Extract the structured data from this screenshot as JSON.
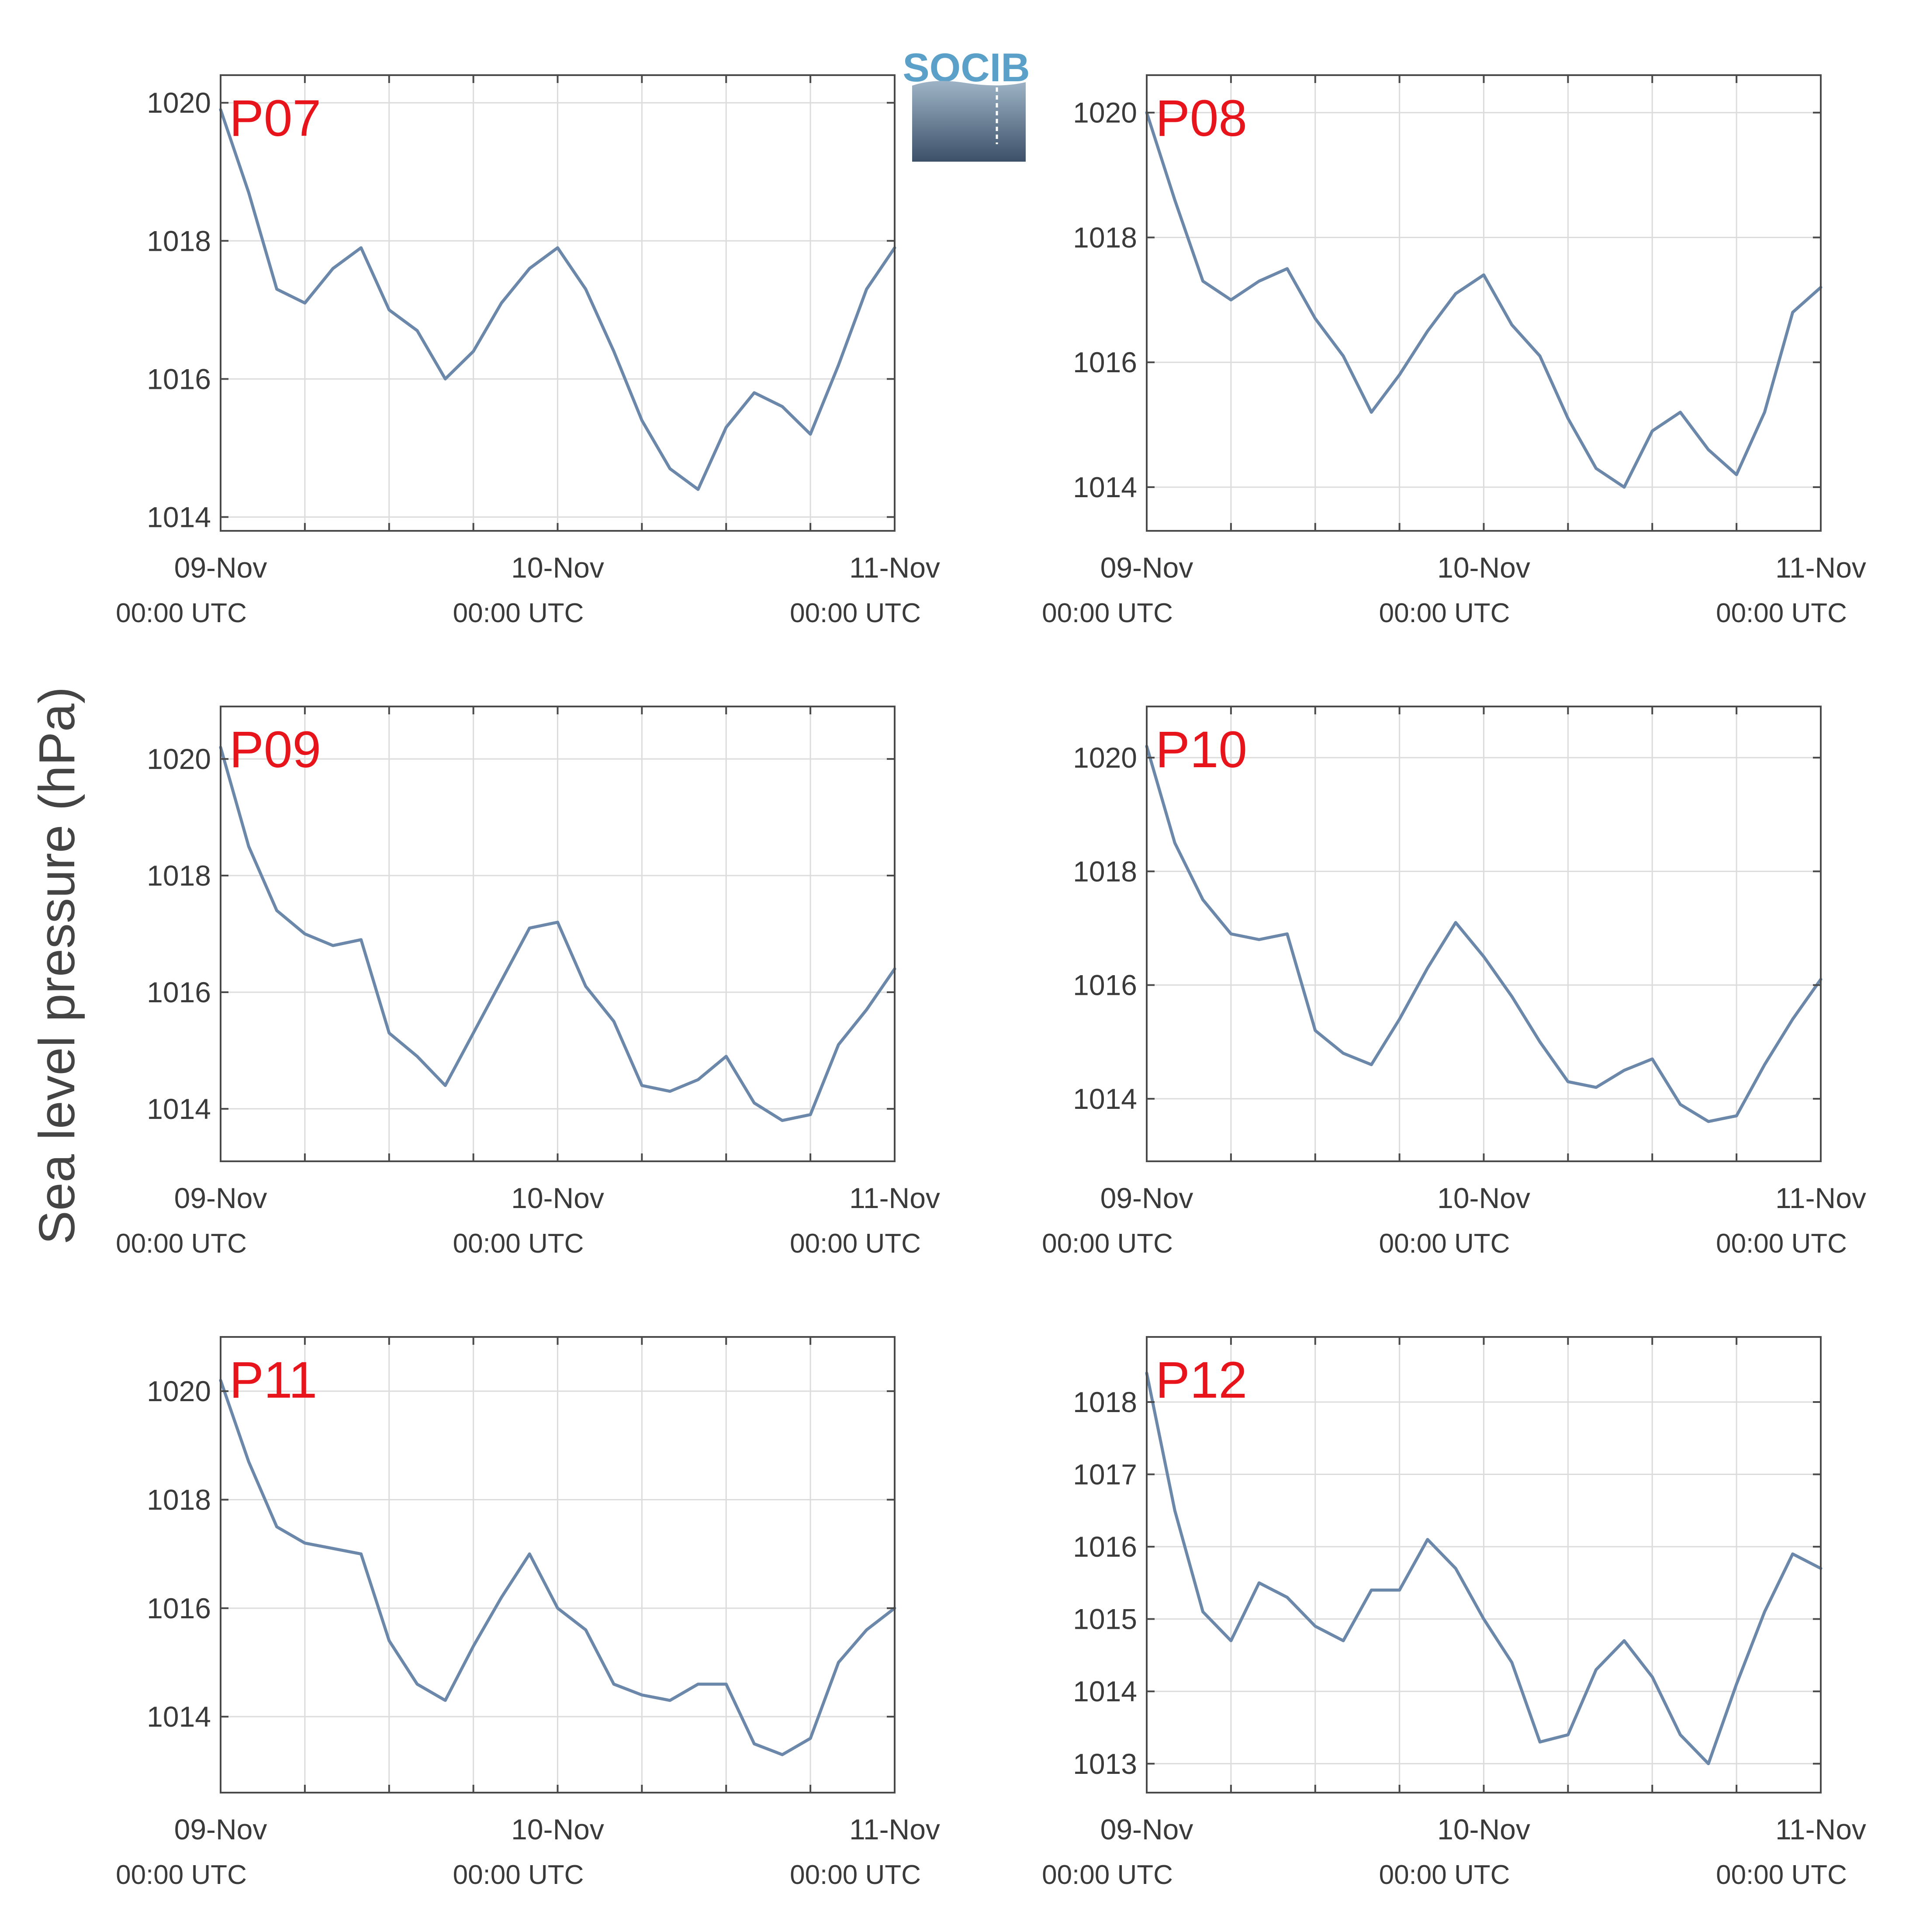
{
  "ylabel": "Sea level pressure (hPa)",
  "logo": {
    "text": "SOCIB",
    "color": "#5aa0c8"
  },
  "colors": {
    "line": "#6b88aa",
    "label": "#e8141c"
  },
  "x_ticks": [
    {
      "day": 0,
      "date": "09-Nov",
      "time": "00:00 UTC"
    },
    {
      "day": 1,
      "date": "10-Nov",
      "time": "00:00 UTC"
    },
    {
      "day": 2,
      "date": "11-Nov",
      "time": "00:00 UTC"
    }
  ],
  "chart_data": [
    {
      "type": "line",
      "label": "P07",
      "xlabel": "",
      "ylabel": "Sea level pressure (hPa)",
      "xlim_days": [
        0,
        2
      ],
      "ylim": [
        1013.8,
        1020.4
      ],
      "yticks": [
        1014,
        1016,
        1018,
        1020
      ],
      "grid": true,
      "x_hours": [
        0,
        2,
        4,
        6,
        8,
        10,
        12,
        14,
        16,
        18,
        20,
        22,
        24,
        26,
        28,
        30,
        32,
        34,
        36,
        38,
        40,
        42,
        44,
        46,
        48
      ],
      "values": [
        1019.9,
        1018.7,
        1017.3,
        1017.1,
        1017.6,
        1017.9,
        1017.0,
        1016.7,
        1016.0,
        1016.4,
        1017.1,
        1017.6,
        1017.9,
        1017.3,
        1016.4,
        1015.4,
        1014.7,
        1014.4,
        1015.3,
        1015.8,
        1015.6,
        1015.2,
        1016.2,
        1017.3,
        1017.9
      ]
    },
    {
      "type": "line",
      "label": "P08",
      "xlabel": "",
      "ylabel": "Sea level pressure (hPa)",
      "xlim_days": [
        0,
        2
      ],
      "ylim": [
        1013.3,
        1020.6
      ],
      "yticks": [
        1014,
        1016,
        1018,
        1020
      ],
      "grid": true,
      "x_hours": [
        0,
        2,
        4,
        6,
        8,
        10,
        12,
        14,
        16,
        18,
        20,
        22,
        24,
        26,
        28,
        30,
        32,
        34,
        36,
        38,
        40,
        42,
        44,
        46,
        48
      ],
      "values": [
        1020.0,
        1018.6,
        1017.3,
        1017.0,
        1017.3,
        1017.5,
        1016.7,
        1016.1,
        1015.2,
        1015.8,
        1016.5,
        1017.1,
        1017.4,
        1016.6,
        1016.1,
        1015.1,
        1014.3,
        1014.0,
        1014.9,
        1015.2,
        1014.6,
        1014.2,
        1015.2,
        1016.8,
        1017.2
      ]
    },
    {
      "type": "line",
      "label": "P09",
      "xlabel": "",
      "ylabel": "Sea level pressure (hPa)",
      "xlim_days": [
        0,
        2
      ],
      "ylim": [
        1013.1,
        1020.9
      ],
      "yticks": [
        1014,
        1016,
        1018,
        1020
      ],
      "grid": true,
      "x_hours": [
        0,
        2,
        4,
        6,
        8,
        10,
        12,
        14,
        16,
        18,
        20,
        22,
        24,
        26,
        28,
        30,
        32,
        34,
        36,
        38,
        40,
        42,
        44,
        46,
        48
      ],
      "values": [
        1020.2,
        1018.5,
        1017.4,
        1017.0,
        1016.8,
        1016.9,
        1015.3,
        1014.9,
        1014.4,
        1015.3,
        1016.2,
        1017.1,
        1017.2,
        1016.1,
        1015.5,
        1014.4,
        1014.3,
        1014.5,
        1014.9,
        1014.1,
        1013.8,
        1013.9,
        1015.1,
        1015.7,
        1016.4
      ]
    },
    {
      "type": "line",
      "label": "P10",
      "xlabel": "",
      "ylabel": "Sea level pressure (hPa)",
      "xlim_days": [
        0,
        2
      ],
      "ylim": [
        1012.9,
        1020.9
      ],
      "yticks": [
        1014,
        1016,
        1018,
        1020
      ],
      "grid": true,
      "x_hours": [
        0,
        2,
        4,
        6,
        8,
        10,
        12,
        14,
        16,
        18,
        20,
        22,
        24,
        26,
        28,
        30,
        32,
        34,
        36,
        38,
        40,
        42,
        44,
        46,
        48
      ],
      "values": [
        1020.2,
        1018.5,
        1017.5,
        1016.9,
        1016.8,
        1016.9,
        1015.2,
        1014.8,
        1014.6,
        1015.4,
        1016.3,
        1017.1,
        1016.5,
        1015.8,
        1015.0,
        1014.3,
        1014.2,
        1014.5,
        1014.7,
        1013.9,
        1013.6,
        1013.7,
        1014.6,
        1015.4,
        1016.1
      ]
    },
    {
      "type": "line",
      "label": "P11",
      "xlabel": "",
      "ylabel": "Sea level pressure (hPa)",
      "xlim_days": [
        0,
        2
      ],
      "ylim": [
        1012.6,
        1021.0
      ],
      "yticks": [
        1014,
        1016,
        1018,
        1020
      ],
      "grid": true,
      "x_hours": [
        0,
        2,
        4,
        6,
        8,
        10,
        12,
        14,
        16,
        18,
        20,
        22,
        24,
        26,
        28,
        30,
        32,
        34,
        36,
        38,
        40,
        42,
        44,
        46,
        48
      ],
      "values": [
        1020.2,
        1018.7,
        1017.5,
        1017.2,
        1017.1,
        1017.0,
        1015.4,
        1014.6,
        1014.3,
        1015.3,
        1016.2,
        1017.0,
        1016.0,
        1015.6,
        1014.6,
        1014.4,
        1014.3,
        1014.6,
        1014.6,
        1013.5,
        1013.3,
        1013.6,
        1015.0,
        1015.6,
        1016.0
      ]
    },
    {
      "type": "line",
      "label": "P12",
      "xlabel": "",
      "ylabel": "Sea level pressure (hPa)",
      "xlim_days": [
        0,
        2
      ],
      "ylim": [
        1012.6,
        1018.9
      ],
      "yticks": [
        1013,
        1014,
        1015,
        1016,
        1017,
        1018
      ],
      "grid": true,
      "x_hours": [
        0,
        2,
        4,
        6,
        8,
        10,
        12,
        14,
        16,
        18,
        20,
        22,
        24,
        26,
        28,
        30,
        32,
        34,
        36,
        38,
        40,
        42,
        44,
        46,
        48
      ],
      "values": [
        1018.4,
        1016.5,
        1015.1,
        1014.7,
        1015.5,
        1015.3,
        1014.9,
        1014.7,
        1015.4,
        1015.4,
        1016.1,
        1015.7,
        1015.0,
        1014.4,
        1013.3,
        1013.4,
        1014.3,
        1014.7,
        1014.2,
        1013.4,
        1013.0,
        1014.1,
        1015.1,
        1015.9,
        1015.7
      ]
    }
  ]
}
